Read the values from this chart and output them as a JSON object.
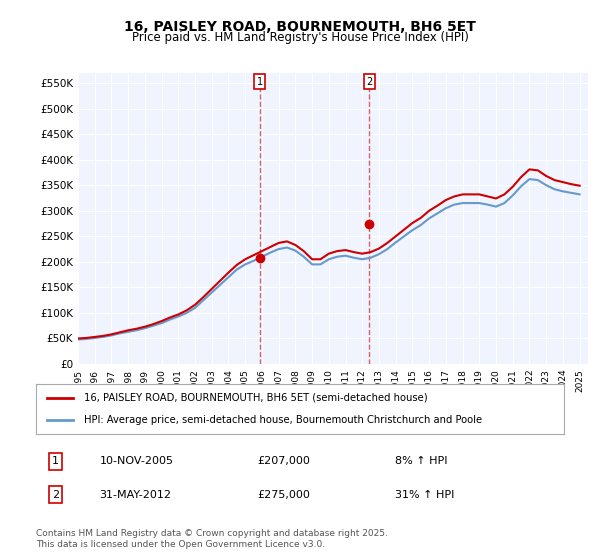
{
  "title": "16, PAISLEY ROAD, BOURNEMOUTH, BH6 5ET",
  "subtitle": "Price paid vs. HM Land Registry's House Price Index (HPI)",
  "title_fontsize": 11,
  "subtitle_fontsize": 9.5,
  "ylabel_ticks": [
    "£0",
    "£50K",
    "£100K",
    "£150K",
    "£200K",
    "£250K",
    "£300K",
    "£350K",
    "£400K",
    "£450K",
    "£500K",
    "£550K"
  ],
  "ytick_values": [
    0,
    50000,
    100000,
    150000,
    200000,
    250000,
    300000,
    350000,
    400000,
    450000,
    500000,
    550000
  ],
  "ylim": [
    0,
    570000
  ],
  "xlim_start": 1995,
  "xlim_end": 2025.5,
  "background_color": "#ffffff",
  "plot_background": "#f0f4ff",
  "grid_color": "#ffffff",
  "red_line_color": "#cc0000",
  "blue_line_color": "#6699cc",
  "sale1_x": 2005.86,
  "sale1_y": 207000,
  "sale1_label": "1",
  "sale2_x": 2012.42,
  "sale2_y": 275000,
  "sale2_label": "2",
  "legend_line1": "16, PAISLEY ROAD, BOURNEMOUTH, BH6 5ET (semi-detached house)",
  "legend_line2": "HPI: Average price, semi-detached house, Bournemouth Christchurch and Poole",
  "ann1_num": "1",
  "ann1_date": "10-NOV-2005",
  "ann1_price": "£207,000",
  "ann1_hpi": "8% ↑ HPI",
  "ann2_num": "2",
  "ann2_date": "31-MAY-2012",
  "ann2_price": "£275,000",
  "ann2_hpi": "31% ↑ HPI",
  "footer": "Contains HM Land Registry data © Crown copyright and database right 2025.\nThis data is licensed under the Open Government Licence v3.0.",
  "hpi_data_x": [
    1995.0,
    1995.5,
    1996.0,
    1996.5,
    1997.0,
    1997.5,
    1998.0,
    1998.5,
    1999.0,
    1999.5,
    2000.0,
    2000.5,
    2001.0,
    2001.5,
    2002.0,
    2002.5,
    2003.0,
    2003.5,
    2004.0,
    2004.5,
    2005.0,
    2005.5,
    2006.0,
    2006.5,
    2007.0,
    2007.5,
    2008.0,
    2008.5,
    2009.0,
    2009.5,
    2010.0,
    2010.5,
    2011.0,
    2011.5,
    2012.0,
    2012.5,
    2013.0,
    2013.5,
    2014.0,
    2014.5,
    2015.0,
    2015.5,
    2016.0,
    2016.5,
    2017.0,
    2017.5,
    2018.0,
    2018.5,
    2019.0,
    2019.5,
    2020.0,
    2020.5,
    2021.0,
    2021.5,
    2022.0,
    2022.5,
    2023.0,
    2023.5,
    2024.0,
    2024.5,
    2025.0
  ],
  "hpi_data_y": [
    48000,
    49000,
    51000,
    53000,
    56000,
    60000,
    63000,
    66000,
    70000,
    75000,
    80000,
    87000,
    93000,
    100000,
    110000,
    125000,
    140000,
    155000,
    170000,
    185000,
    195000,
    202000,
    210000,
    218000,
    225000,
    228000,
    222000,
    210000,
    195000,
    195000,
    205000,
    210000,
    212000,
    208000,
    205000,
    208000,
    215000,
    225000,
    238000,
    250000,
    262000,
    272000,
    285000,
    295000,
    305000,
    312000,
    315000,
    315000,
    315000,
    312000,
    308000,
    315000,
    330000,
    348000,
    362000,
    360000,
    350000,
    342000,
    338000,
    335000,
    332000
  ],
  "red_data_x": [
    1995.0,
    1995.5,
    1996.0,
    1996.5,
    1997.0,
    1997.5,
    1998.0,
    1998.5,
    1999.0,
    1999.5,
    2000.0,
    2000.5,
    2001.0,
    2001.5,
    2002.0,
    2002.5,
    2003.0,
    2003.5,
    2004.0,
    2004.5,
    2005.0,
    2005.5,
    2006.0,
    2006.5,
    2007.0,
    2007.5,
    2008.0,
    2008.5,
    2009.0,
    2009.5,
    2010.0,
    2010.5,
    2011.0,
    2011.5,
    2012.0,
    2012.5,
    2013.0,
    2013.5,
    2014.0,
    2014.5,
    2015.0,
    2015.5,
    2016.0,
    2016.5,
    2017.0,
    2017.5,
    2018.0,
    2018.5,
    2019.0,
    2019.5,
    2020.0,
    2020.5,
    2021.0,
    2021.5,
    2022.0,
    2022.5,
    2023.0,
    2023.5,
    2024.0,
    2024.5,
    2025.0
  ],
  "red_data_y": [
    50000,
    51000,
    53000,
    55000,
    58000,
    62000,
    66000,
    69000,
    73000,
    78000,
    84000,
    91000,
    97000,
    105000,
    116000,
    131000,
    147000,
    163000,
    179000,
    194000,
    205000,
    213000,
    221000,
    229000,
    237000,
    240000,
    233000,
    221000,
    205000,
    205000,
    216000,
    221000,
    223000,
    219000,
    216000,
    219000,
    226000,
    237000,
    250000,
    263000,
    276000,
    286000,
    300000,
    310000,
    321000,
    328000,
    332000,
    332000,
    332000,
    328000,
    324000,
    332000,
    347000,
    366000,
    381000,
    379000,
    368000,
    360000,
    356000,
    352000,
    349000
  ],
  "sale_marker_color": "#cc0000",
  "vline_color": "#cc0000",
  "vline_style": "--",
  "vline_alpha": 0.6
}
